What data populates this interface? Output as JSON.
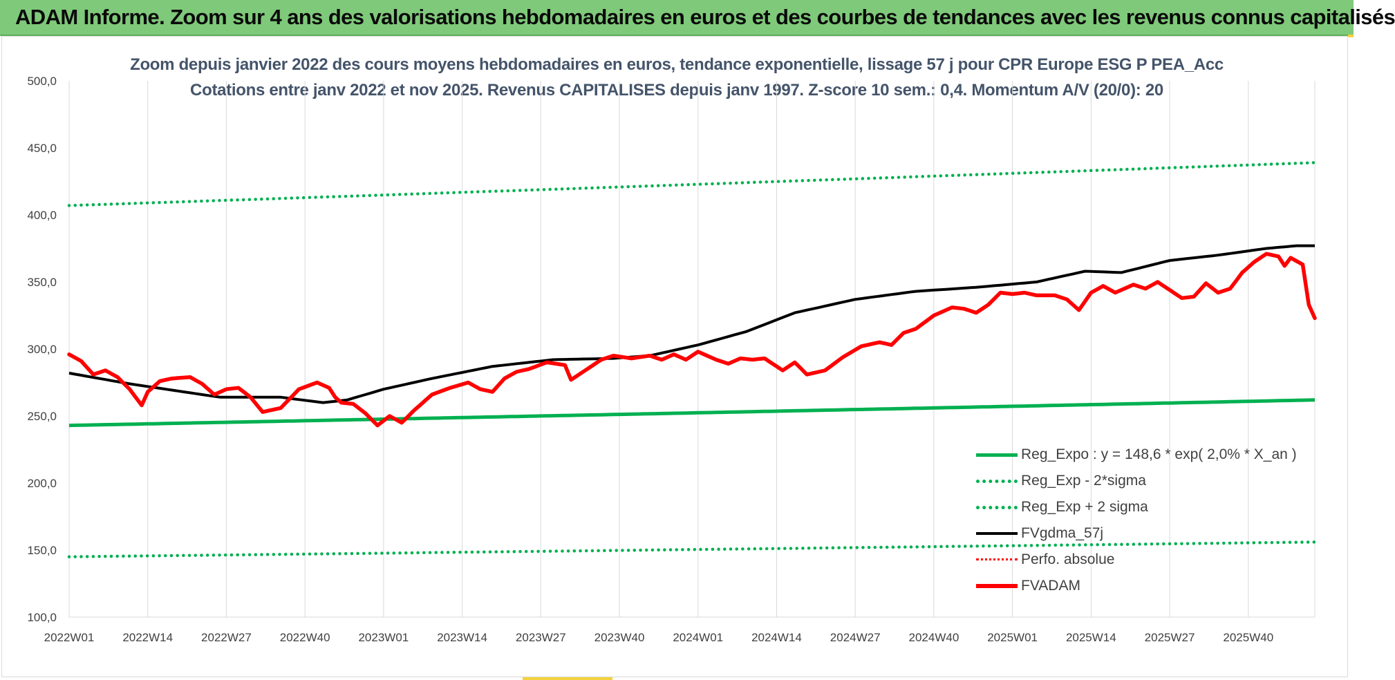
{
  "banner": {
    "title": "ADAM Informe. Zoom sur 4 ans des valorisations hebdomadaires en euros et des courbes de tendances avec les revenus connus capitalisés"
  },
  "chart_data": {
    "type": "line",
    "title_line1": "Zoom depuis janvier 2022 des cours moyens hebdomadaires en euros, tendance exponentielle, lissage 57 j pour CPR Europe ESG P PEA_Acc",
    "title_line2": "Cotations entre janv 2022 et nov 2025. Revenus CAPITALISES depuis janv 1997. Z-score 10 sem.: 0,4. Momentum A/V (20/0): 20",
    "y_ticks": [
      "500,0",
      "450,0",
      "400,0",
      "350,0",
      "300,0",
      "250,0",
      "200,0",
      "150,0",
      "100,0"
    ],
    "ylim": [
      100,
      500
    ],
    "x_ticks": [
      "2022W01",
      "2022W14",
      "2022W27",
      "2022W40",
      "2023W01",
      "2023W14",
      "2023W27",
      "2023W40",
      "2024W01",
      "2024W14",
      "2024W27",
      "2024W40",
      "2025W01",
      "2025W14",
      "2025W27",
      "2025W40"
    ],
    "x_tick_index": [
      0,
      13,
      26,
      39,
      52,
      65,
      78,
      91,
      104,
      117,
      130,
      143,
      156,
      169,
      182,
      195
    ],
    "n_weeks": 207,
    "grid": "vertical",
    "legend_position": "bottom-right",
    "series": [
      {
        "name": "Reg_Expo : y = 148,6 * exp( 2,0% *  X_an )",
        "key": "reg",
        "color": "#00b050",
        "style": "solid",
        "start": 243,
        "end": 262
      },
      {
        "name": "Reg_Exp - 2*sigma",
        "key": "low",
        "color": "#00b050",
        "style": "dotted",
        "start": 145,
        "end": 156
      },
      {
        "name": "Reg_Exp + 2 sigma",
        "key": "high",
        "color": "#00b050",
        "style": "dotted",
        "start": 407,
        "end": 439
      },
      {
        "name": "FVgdma_57j",
        "key": "ma",
        "color": "#000000",
        "style": "solid",
        "anchors": [
          [
            0,
            282
          ],
          [
            10,
            274
          ],
          [
            25,
            264
          ],
          [
            35,
            264
          ],
          [
            42,
            260
          ],
          [
            46,
            262
          ],
          [
            52,
            270
          ],
          [
            60,
            278
          ],
          [
            70,
            287
          ],
          [
            80,
            292
          ],
          [
            90,
            293
          ],
          [
            96,
            295
          ],
          [
            104,
            303
          ],
          [
            112,
            313
          ],
          [
            120,
            327
          ],
          [
            130,
            337
          ],
          [
            140,
            343
          ],
          [
            150,
            346
          ],
          [
            160,
            350
          ],
          [
            168,
            358
          ],
          [
            174,
            357
          ],
          [
            182,
            366
          ],
          [
            190,
            370
          ],
          [
            198,
            375
          ],
          [
            203,
            377
          ],
          [
            206,
            377
          ]
        ]
      },
      {
        "name": "Perfo. absolue",
        "key": "perf",
        "color": "#ff0000",
        "style": "dotted"
      },
      {
        "name": "FVADAM",
        "key": "adam",
        "color": "#ff0000",
        "style": "solid",
        "anchors": [
          [
            0,
            296
          ],
          [
            2,
            291
          ],
          [
            4,
            281
          ],
          [
            6,
            284
          ],
          [
            8,
            279
          ],
          [
            10,
            270
          ],
          [
            12,
            258
          ],
          [
            13,
            268
          ],
          [
            15,
            276
          ],
          [
            17,
            278
          ],
          [
            20,
            279
          ],
          [
            22,
            274
          ],
          [
            24,
            266
          ],
          [
            26,
            270
          ],
          [
            28,
            271
          ],
          [
            30,
            264
          ],
          [
            32,
            253
          ],
          [
            35,
            256
          ],
          [
            38,
            270
          ],
          [
            41,
            275
          ],
          [
            43,
            271
          ],
          [
            44,
            264
          ],
          [
            45,
            260
          ],
          [
            47,
            259
          ],
          [
            49,
            252
          ],
          [
            51,
            243
          ],
          [
            53,
            250
          ],
          [
            55,
            245
          ],
          [
            57,
            254
          ],
          [
            60,
            266
          ],
          [
            63,
            271
          ],
          [
            66,
            275
          ],
          [
            68,
            270
          ],
          [
            70,
            268
          ],
          [
            72,
            278
          ],
          [
            74,
            283
          ],
          [
            76,
            285
          ],
          [
            79,
            290
          ],
          [
            82,
            288
          ],
          [
            83,
            277
          ],
          [
            85,
            283
          ],
          [
            88,
            292
          ],
          [
            90,
            295
          ],
          [
            93,
            293
          ],
          [
            96,
            295
          ],
          [
            98,
            292
          ],
          [
            100,
            296
          ],
          [
            102,
            292
          ],
          [
            104,
            298
          ],
          [
            107,
            292
          ],
          [
            109,
            289
          ],
          [
            111,
            293
          ],
          [
            113,
            292
          ],
          [
            115,
            293
          ],
          [
            118,
            284
          ],
          [
            120,
            290
          ],
          [
            122,
            281
          ],
          [
            125,
            284
          ],
          [
            128,
            294
          ],
          [
            131,
            302
          ],
          [
            134,
            305
          ],
          [
            136,
            303
          ],
          [
            138,
            312
          ],
          [
            140,
            315
          ],
          [
            143,
            325
          ],
          [
            146,
            331
          ],
          [
            148,
            330
          ],
          [
            150,
            327
          ],
          [
            152,
            333
          ],
          [
            154,
            342
          ],
          [
            156,
            341
          ],
          [
            158,
            342
          ],
          [
            160,
            340
          ],
          [
            163,
            340
          ],
          [
            165,
            337
          ],
          [
            167,
            329
          ],
          [
            169,
            342
          ],
          [
            171,
            347
          ],
          [
            173,
            342
          ],
          [
            176,
            348
          ],
          [
            178,
            345
          ],
          [
            180,
            350
          ],
          [
            182,
            344
          ],
          [
            184,
            338
          ],
          [
            186,
            339
          ],
          [
            188,
            349
          ],
          [
            190,
            342
          ],
          [
            192,
            345
          ],
          [
            194,
            357
          ],
          [
            196,
            365
          ],
          [
            198,
            371
          ],
          [
            200,
            369
          ],
          [
            201,
            362
          ],
          [
            202,
            368
          ],
          [
            204,
            363
          ],
          [
            205,
            333
          ],
          [
            206,
            323
          ]
        ]
      }
    ]
  }
}
